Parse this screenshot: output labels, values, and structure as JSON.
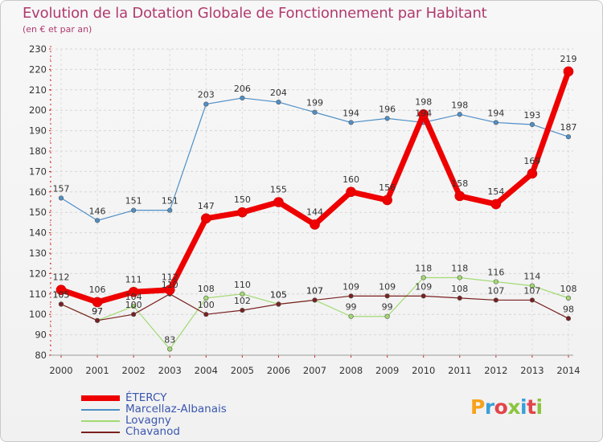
{
  "header": {
    "title": "Evolution de la Dotation Globale de Fonctionnement par Habitant",
    "subtitle": "(en € et par an)"
  },
  "logo": {
    "text": "Proxiti",
    "colors": [
      "#f7a21b",
      "#3aa0d8",
      "#e2454b",
      "#8cc43f",
      "#3aa0d8",
      "#e2454b",
      "#8cc43f"
    ]
  },
  "chart_data": {
    "type": "line",
    "x": [
      "2000",
      "2001",
      "2002",
      "2003",
      "2004",
      "2005",
      "2006",
      "2007",
      "2008",
      "2009",
      "2010",
      "2011",
      "2012",
      "2013",
      "2014"
    ],
    "ylim": [
      80,
      230
    ],
    "yticks": [
      80,
      90,
      100,
      110,
      120,
      130,
      140,
      150,
      160,
      170,
      180,
      190,
      200,
      210,
      220,
      230
    ],
    "grid": true,
    "legend_position": "bottom-left",
    "series": [
      {
        "name": "Marcellaz-Albanais",
        "color": "#4f8fc6",
        "width": 1.2,
        "marker": 2.8,
        "values": [
          157,
          146,
          151,
          151,
          203,
          206,
          204,
          199,
          194,
          196,
          194,
          198,
          194,
          193,
          187
        ]
      },
      {
        "name": "Lovagny",
        "color": "#a2da72",
        "width": 1.2,
        "marker": 2.8,
        "values": [
          105,
          97,
          104,
          83,
          108,
          110,
          105,
          107,
          99,
          99,
          118,
          118,
          116,
          114,
          108
        ]
      },
      {
        "name": "Chavanod",
        "color": "#7a2020",
        "width": 1.2,
        "marker": 2.8,
        "values": [
          105,
          97,
          100,
          110,
          100,
          102,
          105,
          107,
          109,
          109,
          109,
          108,
          107,
          107,
          98
        ]
      },
      {
        "name": "ÉTERCY",
        "color": "#ee0000",
        "width": 7,
        "marker": 6,
        "values": [
          112,
          106,
          111,
          112,
          147,
          150,
          155,
          144,
          160,
          156,
          198,
          158,
          154,
          169,
          219
        ]
      }
    ],
    "data_labels": [
      [
        "157",
        "146",
        "151",
        "151",
        "203",
        "206",
        "204",
        "199",
        "194",
        "196",
        "194",
        "198",
        "194",
        "193",
        "187"
      ],
      [
        "105",
        "97",
        "104",
        "83",
        "108",
        "110",
        "105",
        "107",
        "99",
        "99",
        "118",
        "118",
        "116",
        "114",
        "108"
      ],
      [
        "105",
        "97",
        "100",
        "110",
        "100",
        "102",
        "105",
        "107",
        "109",
        "109",
        "109",
        "108",
        "107",
        "107",
        "98"
      ],
      [
        "112",
        "106",
        "111",
        "112",
        "147",
        "150",
        "155",
        "144",
        "160",
        "156",
        "198",
        "158",
        "154",
        "169",
        "219"
      ]
    ]
  },
  "legend": [
    {
      "label": "ÉTERCY",
      "color": "#ee0000",
      "thickness": 7
    },
    {
      "label": "Marcellaz-Albanais",
      "color": "#4f8fc6",
      "thickness": 2
    },
    {
      "label": "Lovagny",
      "color": "#a2da72",
      "thickness": 2
    },
    {
      "label": "Chavanod",
      "color": "#7a2020",
      "thickness": 2
    }
  ]
}
